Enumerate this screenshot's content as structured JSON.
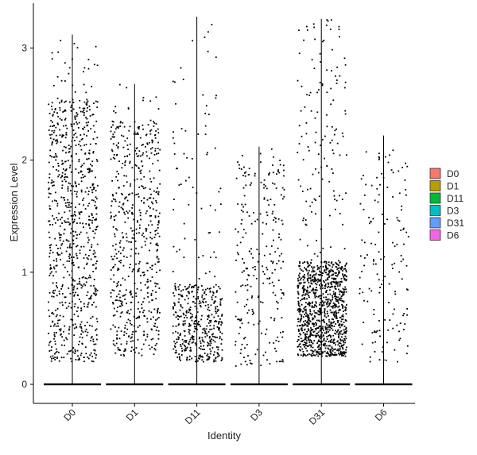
{
  "chart_data": {
    "type": "violin-jitter",
    "title": "",
    "xlabel": "Identity",
    "ylabel": "Expression Level",
    "ylim": [
      -0.17,
      3.4
    ],
    "yticks": [
      0,
      1,
      2,
      3
    ],
    "categories": [
      "D0",
      "D1",
      "D11",
      "D3",
      "D31",
      "D6"
    ],
    "legend": {
      "position": "right",
      "entries": [
        {
          "label": "D0",
          "color": "#F8766D"
        },
        {
          "label": "D1",
          "color": "#B79F00"
        },
        {
          "label": "D11",
          "color": "#00BA38"
        },
        {
          "label": "D3",
          "color": "#00BFC4"
        },
        {
          "label": "D31",
          "color": "#619CFF"
        },
        {
          "label": "D6",
          "color": "#F564E3"
        }
      ]
    },
    "groups": [
      {
        "name": "D0",
        "max": 3.12,
        "nonzero_count": 820,
        "low": 0.2,
        "high": 2.55,
        "sparse_to": 3.12
      },
      {
        "name": "D1",
        "max": 2.68,
        "nonzero_count": 600,
        "low": 0.25,
        "high": 2.35,
        "sparse_to": 2.68
      },
      {
        "name": "D11",
        "max": 3.28,
        "nonzero_count": 480,
        "low": 0.2,
        "high": 0.9,
        "sparse_to": 3.28
      },
      {
        "name": "D3",
        "max": 2.12,
        "nonzero_count": 250,
        "low": 0.15,
        "high": 2.0,
        "sparse_to": 2.12
      },
      {
        "name": "D31",
        "max": 3.26,
        "nonzero_count": 1150,
        "low": 0.25,
        "high": 1.1,
        "sparse_to": 3.26
      },
      {
        "name": "D6",
        "max": 2.22,
        "nonzero_count": 150,
        "low": 0.2,
        "high": 2.1,
        "sparse_to": 2.22
      }
    ],
    "point_color": "#000000",
    "grid": false
  }
}
